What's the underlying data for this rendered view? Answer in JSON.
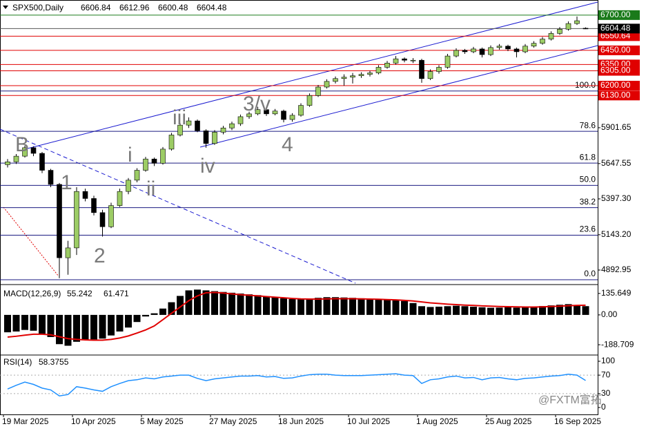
{
  "chart_data": {
    "type": "candlestick",
    "title": "SPX500,Daily",
    "categories": [
      "19 Mar 2025",
      null,
      null,
      null,
      null,
      null,
      null,
      null,
      "10 Apr 2025",
      null,
      null,
      null,
      null,
      null,
      null,
      null,
      "5 May 2025",
      null,
      null,
      null,
      null,
      null,
      null,
      null,
      "27 May 2025",
      null,
      null,
      null,
      null,
      null,
      null,
      null,
      "18 Jun 2025",
      null,
      null,
      null,
      null,
      null,
      null,
      null,
      "10 Jul 2025",
      null,
      null,
      null,
      null,
      null,
      null,
      null,
      "1 Aug 2025",
      null,
      null,
      null,
      null,
      null,
      null,
      null,
      "25 Aug 2025",
      null,
      null,
      null,
      null,
      null,
      null,
      null,
      "16 Sep 2025",
      null,
      null,
      null
    ],
    "candles": [
      [
        5640,
        5680,
        5620,
        5660
      ],
      [
        5660,
        5715,
        5645,
        5700
      ],
      [
        5700,
        5775,
        5690,
        5760
      ],
      [
        5760,
        5770,
        5700,
        5720
      ],
      [
        5720,
        5730,
        5580,
        5600
      ],
      [
        5600,
        5610,
        5480,
        5500
      ],
      [
        5500,
        5510,
        4835,
        4980
      ],
      [
        4980,
        5100,
        4860,
        5050
      ],
      [
        5050,
        5480,
        5000,
        5450
      ],
      [
        5450,
        5470,
        5380,
        5400
      ],
      [
        5400,
        5420,
        5280,
        5300
      ],
      [
        5300,
        5320,
        5130,
        5200
      ],
      [
        5200,
        5370,
        5190,
        5350
      ],
      [
        5350,
        5470,
        5340,
        5450
      ],
      [
        5450,
        5545,
        5430,
        5530
      ],
      [
        5530,
        5615,
        5515,
        5600
      ],
      [
        5600,
        5695,
        5590,
        5680
      ],
      [
        5680,
        5690,
        5630,
        5650
      ],
      [
        5650,
        5765,
        5640,
        5750
      ],
      [
        5750,
        5865,
        5740,
        5850
      ],
      [
        5850,
        5935,
        5840,
        5920
      ],
      [
        5920,
        5975,
        5900,
        5950
      ],
      [
        5950,
        5960,
        5870,
        5880
      ],
      [
        5880,
        5890,
        5760,
        5790
      ],
      [
        5790,
        5885,
        5780,
        5870
      ],
      [
        5870,
        5915,
        5855,
        5900
      ],
      [
        5900,
        5945,
        5885,
        5930
      ],
      [
        5930,
        5995,
        5915,
        5980
      ],
      [
        5980,
        6015,
        5965,
        6000
      ],
      [
        6000,
        6050,
        5990,
        6030
      ],
      [
        6030,
        6040,
        5985,
        6000
      ],
      [
        6000,
        6035,
        5990,
        6020
      ],
      [
        6020,
        6030,
        5940,
        5960
      ],
      [
        5960,
        6005,
        5945,
        5990
      ],
      [
        5990,
        6075,
        5980,
        6060
      ],
      [
        6060,
        6145,
        6050,
        6130
      ],
      [
        6130,
        6205,
        6120,
        6190
      ],
      [
        6190,
        6245,
        6180,
        6230
      ],
      [
        6230,
        6265,
        6215,
        6250
      ],
      [
        6250,
        6280,
        6200,
        6260
      ],
      [
        6260,
        6290,
        6215,
        6270
      ],
      [
        6270,
        6295,
        6255,
        6280
      ],
      [
        6280,
        6305,
        6265,
        6290
      ],
      [
        6290,
        6345,
        6280,
        6330
      ],
      [
        6330,
        6375,
        6320,
        6360
      ],
      [
        6360,
        6410,
        6350,
        6390
      ],
      [
        6390,
        6400,
        6365,
        6380
      ],
      [
        6380,
        6395,
        6360,
        6380
      ],
      [
        6380,
        6390,
        6220,
        6250
      ],
      [
        6250,
        6315,
        6240,
        6300
      ],
      [
        6300,
        6345,
        6285,
        6330
      ],
      [
        6330,
        6425,
        6320,
        6410
      ],
      [
        6410,
        6465,
        6400,
        6450
      ],
      [
        6450,
        6460,
        6425,
        6440
      ],
      [
        6440,
        6475,
        6430,
        6460
      ],
      [
        6460,
        6470,
        6400,
        6420
      ],
      [
        6420,
        6485,
        6410,
        6470
      ],
      [
        6470,
        6495,
        6455,
        6480
      ],
      [
        6480,
        6490,
        6445,
        6460
      ],
      [
        6460,
        6470,
        6400,
        6440
      ],
      [
        6440,
        6495,
        6430,
        6480
      ],
      [
        6480,
        6515,
        6470,
        6500
      ],
      [
        6500,
        6545,
        6490,
        6530
      ],
      [
        6530,
        6585,
        6520,
        6570
      ],
      [
        6570,
        6615,
        6560,
        6600
      ],
      [
        6600,
        6655,
        6590,
        6640
      ],
      [
        6640,
        6690,
        6630,
        6660
      ],
      [
        6606.84,
        6612.96,
        6600.48,
        6604.48
      ]
    ],
    "up_color": "#9ccc65",
    "down_color": "#000000",
    "ylim": [
      4790,
      6807
    ],
    "yticks": [
      5901.65,
      5647.55,
      {
        "value": 5397.3,
        "label": "5397.30"
      },
      {
        "value": 5143.2,
        "label": "5143.20"
      },
      4892.95
    ],
    "levels": [
      {
        "value": 6700,
        "label": "6700.00",
        "color": "#1a7a1a"
      },
      {
        "value": 6550.64,
        "label": "6550.64",
        "color": "#e00000"
      },
      {
        "value": 6450,
        "label": "6450.00",
        "color": "#e00000"
      },
      {
        "value": 6350,
        "label": "6350.00",
        "color": "#e00000"
      },
      {
        "value": 6305,
        "label": "6305.00",
        "color": "#e00000"
      },
      {
        "value": 6200,
        "label": "6200.00",
        "color": "#e00000"
      },
      {
        "value": 6130,
        "label": "6130.00",
        "color": "#e00000"
      }
    ],
    "fibs": [
      {
        "label": "100.0",
        "value": 6162
      },
      {
        "label": "78.6",
        "value": 5876
      },
      {
        "label": "61.8",
        "value": 5651
      },
      {
        "label": "50.0",
        "value": 5493
      },
      {
        "label": "38.2",
        "value": 5335
      },
      {
        "label": "23.6",
        "value": 5140
      },
      {
        "label": "0.0",
        "value": 4824
      }
    ],
    "annotations": [
      "B",
      "1",
      "2",
      "i",
      "ii",
      "iii",
      "iv",
      "3/v",
      "4"
    ],
    "macd": {
      "title": "MACD(12,26,9)",
      "ylim": [
        -245,
        183
      ],
      "yticks": [
        135.649,
        {
          "value": 0,
          "label": "0.00"
        },
        -188.709
      ],
      "histogram": [
        -110,
        -105,
        -95,
        -100,
        -120,
        -140,
        -185,
        -195,
        -170,
        -160,
        -155,
        -150,
        -130,
        -105,
        -80,
        -45,
        -10,
        10,
        40,
        80,
        120,
        155,
        160,
        155,
        150,
        145,
        140,
        135,
        130,
        125,
        118,
        112,
        105,
        100,
        100,
        104,
        108,
        112,
        112,
        110,
        108,
        105,
        102,
        100,
        98,
        95,
        88,
        75,
        55,
        50,
        52,
        55,
        58,
        55,
        52,
        48,
        45,
        46,
        48,
        46,
        48,
        52,
        56,
        60,
        64,
        68,
        62,
        55.242
      ],
      "signal": [
        -140,
        -135,
        -128,
        -122,
        -122,
        -126,
        -138,
        -150,
        -155,
        -158,
        -160,
        -160,
        -155,
        -146,
        -133,
        -115,
        -95,
        -70,
        -30,
        10,
        50,
        90,
        120,
        140,
        142,
        138,
        133,
        128,
        124,
        120,
        116,
        112,
        108,
        104,
        101,
        100,
        100,
        101,
        102,
        102,
        102,
        101,
        100,
        99,
        97,
        95,
        92,
        88,
        82,
        76,
        72,
        68,
        65,
        62,
        60,
        57,
        55,
        53,
        52,
        51,
        50,
        50,
        51,
        53,
        55,
        58,
        60,
        61.471
      ],
      "hist_color": "#000000",
      "signal_color": "#e00000"
    },
    "rsi": {
      "title": "RSI(14)",
      "ylim": [
        -12,
        112
      ],
      "yticks": [
        100,
        70,
        30,
        0
      ],
      "levels": [
        70,
        30
      ],
      "values": [
        40,
        48,
        55,
        50,
        42,
        38,
        25,
        28,
        45,
        42,
        38,
        35,
        45,
        52,
        58,
        60,
        64,
        62,
        66,
        68,
        70,
        70,
        63,
        58,
        62,
        64,
        66,
        68,
        68,
        69,
        66,
        67,
        63,
        64,
        68,
        71,
        72,
        72,
        70,
        69,
        69,
        69,
        70,
        71,
        72,
        73,
        70,
        69,
        52,
        60,
        62,
        66,
        68,
        64,
        65,
        60,
        64,
        65,
        62,
        60,
        63,
        64,
        66,
        68,
        69,
        72,
        70,
        58.3755
      ],
      "color": "#1e90ff"
    },
    "watermark": "@FXTM富拓"
  }
}
